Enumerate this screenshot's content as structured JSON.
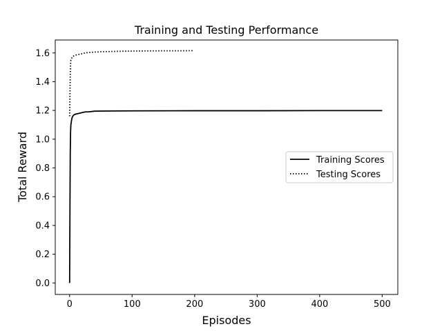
{
  "chart_data": {
    "type": "line",
    "title": "Training and Testing Performance",
    "xlabel": "Episodes",
    "ylabel": "Total Reward",
    "xlim": [
      -23,
      525
    ],
    "ylim": [
      -0.08,
      1.69
    ],
    "xticks": [
      0,
      100,
      200,
      300,
      400,
      500
    ],
    "yticks": [
      0.0,
      0.2,
      0.4,
      0.6,
      0.8,
      1.0,
      1.2,
      1.4,
      1.6
    ],
    "grid": false,
    "legend": {
      "position": "center-right"
    },
    "series": [
      {
        "name": "Training Scores",
        "line_style": "solid",
        "color": "#000000",
        "x": [
          0,
          0.5,
          1,
          1.5,
          2,
          3,
          4,
          5,
          7,
          10,
          15,
          20,
          25,
          30,
          40,
          60,
          100,
          200,
          300,
          400,
          500
        ],
        "y": [
          0.0,
          0.5,
          0.9,
          1.05,
          1.1,
          1.13,
          1.15,
          1.16,
          1.17,
          1.175,
          1.18,
          1.185,
          1.19,
          1.19,
          1.195,
          1.196,
          1.197,
          1.198,
          1.198,
          1.199,
          1.199
        ]
      },
      {
        "name": "Testing Scores",
        "line_style": "dotted",
        "color": "#000000",
        "x": [
          0,
          0.5,
          1,
          1.5,
          2,
          3,
          4,
          5,
          7,
          10,
          15,
          20,
          25,
          30,
          40,
          50,
          75,
          100,
          125,
          150,
          175,
          198
        ],
        "y": [
          1.16,
          1.3,
          1.45,
          1.52,
          1.55,
          1.56,
          1.57,
          1.575,
          1.58,
          1.585,
          1.59,
          1.595,
          1.6,
          1.603,
          1.606,
          1.608,
          1.611,
          1.613,
          1.614,
          1.615,
          1.615,
          1.616
        ]
      }
    ]
  }
}
